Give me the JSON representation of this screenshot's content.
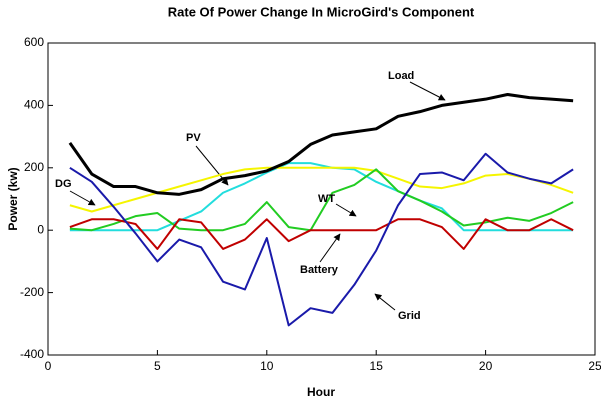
{
  "chart_data": {
    "type": "line",
    "title": "Rate Of Power Change In MicroGird's Component",
    "x_label": "Hour",
    "y_label": "Power (kw)",
    "x": [
      1,
      2,
      3,
      4,
      5,
      6,
      7,
      8,
      9,
      10,
      11,
      12,
      13,
      14,
      15,
      16,
      17,
      18,
      19,
      20,
      21,
      22,
      23,
      24
    ],
    "series": [
      {
        "name": "Load",
        "color": "#000000",
        "values": [
          280,
          180,
          140,
          140,
          120,
          115,
          130,
          165,
          175,
          190,
          220,
          275,
          305,
          315,
          325,
          365,
          380,
          400,
          410,
          420,
          435,
          425,
          420,
          415
        ]
      },
      {
        "name": "PV",
        "color": "#22dddd",
        "values": [
          0,
          0,
          0,
          0,
          0,
          30,
          60,
          120,
          150,
          185,
          215,
          215,
          200,
          195,
          155,
          125,
          95,
          70,
          0,
          0,
          0,
          0,
          0,
          0
        ]
      },
      {
        "name": "DG",
        "color": "#f5f500",
        "values": [
          80,
          60,
          80,
          100,
          120,
          140,
          160,
          180,
          195,
          200,
          200,
          200,
          200,
          200,
          190,
          165,
          140,
          135,
          150,
          175,
          180,
          165,
          145,
          120
        ]
      },
      {
        "name": "WT",
        "color": "#22cc22",
        "values": [
          5,
          0,
          20,
          45,
          55,
          5,
          0,
          0,
          20,
          90,
          10,
          0,
          120,
          145,
          195,
          125,
          95,
          60,
          15,
          25,
          40,
          30,
          55,
          90
        ]
      },
      {
        "name": "Battery",
        "color": "#c00000",
        "values": [
          10,
          35,
          35,
          20,
          -60,
          35,
          25,
          -60,
          -30,
          35,
          -35,
          0,
          0,
          0,
          0,
          35,
          35,
          10,
          -60,
          35,
          0,
          0,
          35,
          0
        ]
      },
      {
        "name": "Grid",
        "color": "#1a1aaa",
        "values": [
          200,
          155,
          75,
          -10,
          -100,
          -30,
          -55,
          -165,
          -190,
          -25,
          -305,
          -250,
          -265,
          -175,
          -65,
          80,
          180,
          185,
          160,
          245,
          185,
          165,
          150,
          195
        ]
      }
    ],
    "xlim": [
      0,
      25
    ],
    "xticks": [
      0,
      5,
      10,
      15,
      20,
      25
    ],
    "ylim": [
      -400,
      600
    ],
    "yticks": [
      -400,
      -200,
      0,
      200,
      400,
      600
    ]
  }
}
